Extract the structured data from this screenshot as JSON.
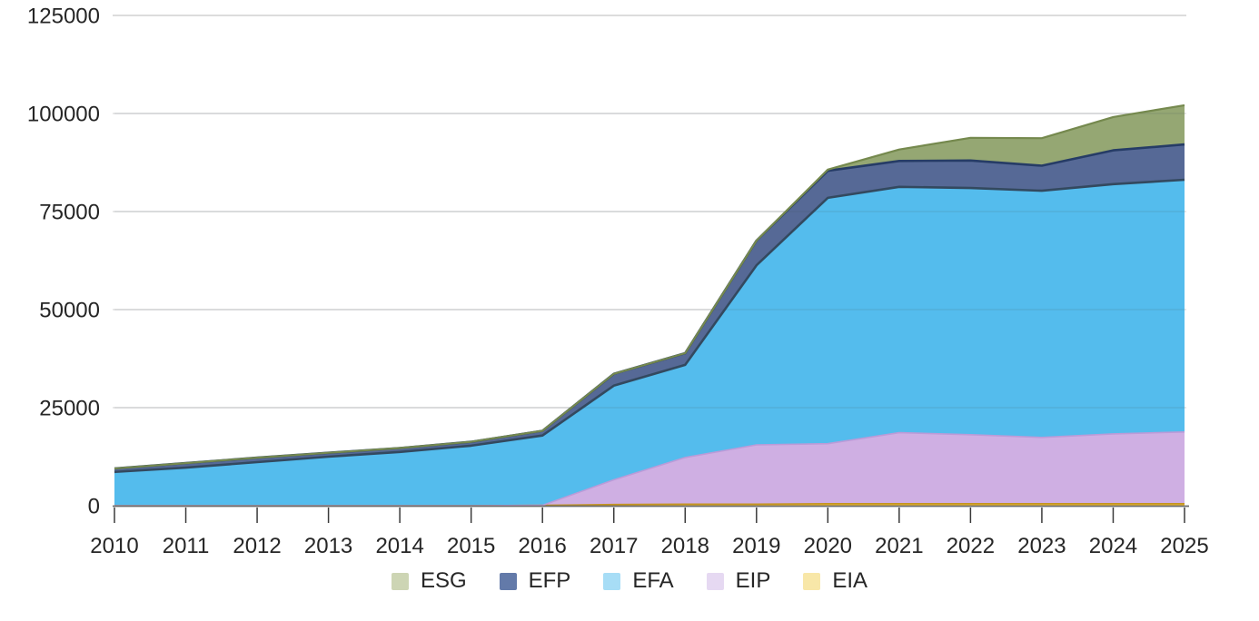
{
  "chart_data": {
    "type": "area",
    "stacked": true,
    "title": "",
    "xlabel": "",
    "ylabel": "",
    "x_labels": [
      "2010",
      "2011",
      "2012",
      "2013",
      "2014",
      "2015",
      "2016",
      "2017",
      "2018",
      "2019",
      "2020",
      "2021",
      "2022",
      "2023",
      "2024",
      "2025"
    ],
    "y_ticks": [
      0,
      25000,
      50000,
      75000,
      100000,
      125000
    ],
    "ylim": [
      0,
      125000
    ],
    "grid": true,
    "legend_position": "bottom",
    "stack_order_note": "series listed bottom-to-top of stack",
    "series": [
      {
        "name": "EIA",
        "fill": "#ecb62d",
        "stroke": "#c4931f",
        "stroke_width": 1.6,
        "values": [
          0,
          0,
          0,
          0,
          0,
          0,
          100,
          300,
          400,
          400,
          500,
          500,
          500,
          500,
          500,
          500
        ]
      },
      {
        "name": "EIP",
        "fill": "#ccabe2",
        "stroke": "#bb9bd8",
        "stroke_width": 1.6,
        "values": [
          0,
          0,
          0,
          0,
          0,
          0,
          0,
          6300,
          11900,
          15100,
          15300,
          18100,
          17600,
          16900,
          17800,
          18300
        ]
      },
      {
        "name": "EFA",
        "fill": "#4bb8ec",
        "stroke": "#33495f",
        "stroke_width": 2.6,
        "values": [
          8600,
          9700,
          11100,
          12500,
          13700,
          15300,
          17800,
          24000,
          23600,
          45800,
          62700,
          62700,
          62900,
          62900,
          63700,
          64300
        ]
      },
      {
        "name": "EFP",
        "fill": "#4d6190",
        "stroke": "#263c66",
        "stroke_width": 2.6,
        "values": [
          900,
          1150,
          1150,
          1000,
          1000,
          1000,
          1200,
          3000,
          3000,
          6300,
          6900,
          6600,
          7000,
          6400,
          8600,
          9000
        ]
      },
      {
        "name": "ESG",
        "fill": "#8fa26c",
        "stroke": "#75894e",
        "stroke_width": 2.2,
        "values": [
          0,
          0,
          0,
          0,
          0,
          0,
          0,
          0,
          0,
          0,
          300,
          2900,
          5800,
          7000,
          8500,
          10000
        ]
      }
    ]
  },
  "legend": {
    "items": [
      {
        "label": "ESG",
        "swatch": "#cdd5b4"
      },
      {
        "label": "EFP",
        "swatch": "#637aa9"
      },
      {
        "label": "EFA",
        "swatch": "#a7ddf6"
      },
      {
        "label": "EIP",
        "swatch": "#e6d9f2"
      },
      {
        "label": "EIA",
        "swatch": "#f8e7a8"
      }
    ]
  },
  "axes": {
    "text_color": "#262626",
    "grid_color": "#d9d9d9",
    "top_grid_color": "#c8c8c8",
    "axis_color": "#6a6a6a",
    "tick_color": "#3a3a3a"
  }
}
